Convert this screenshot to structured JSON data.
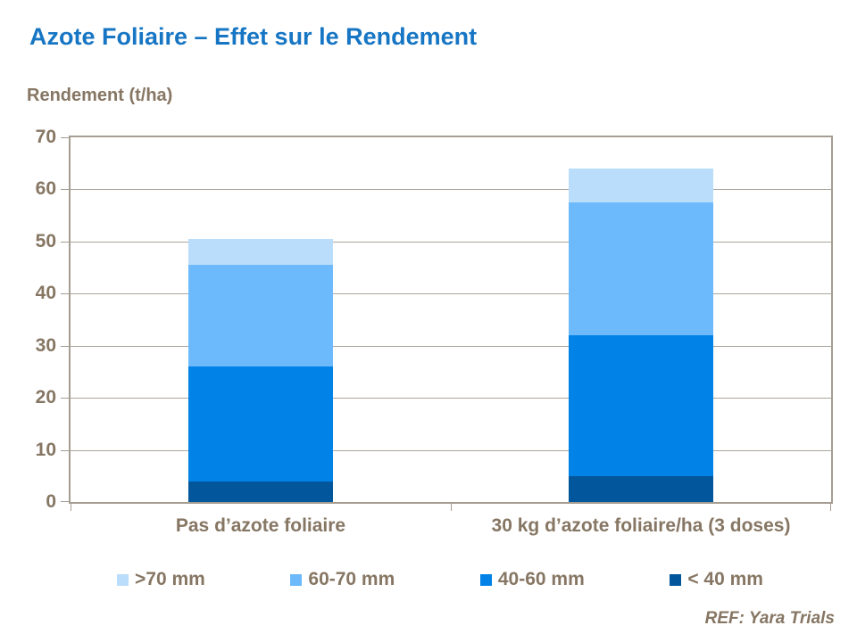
{
  "title": "Azote Foliaire – Effet sur le Rendement",
  "ref_note": "REF: Yara Trials",
  "colors": {
    "title_blue": "#1776C4",
    "text_brown": "#867663",
    "axis_line": "#A69D92",
    "gridline": "#ABA59D",
    "seg_gt70": "#B9DDFB",
    "seg_60_70": "#6CBAFB",
    "seg_40_60": "#0082E6",
    "seg_lt40": "#02569B"
  },
  "chart_data": {
    "type": "bar",
    "stacked": true,
    "title": "Azote Foliaire – Effet sur le Rendement",
    "ylabel": "Rendement (t/ha)",
    "xlabel": "",
    "ylim": [
      0,
      70
    ],
    "yticks": [
      0,
      10,
      20,
      30,
      40,
      50,
      60,
      70
    ],
    "grid": true,
    "legend_position": "bottom",
    "categories": [
      "Pas d’azote foliaire",
      "30 kg d’azote foliaire/ha (3 doses)"
    ],
    "series": [
      {
        "name": "< 40 mm",
        "color": "#02569B",
        "values": [
          4,
          5
        ]
      },
      {
        "name": "40-60 mm",
        "color": "#0082E6",
        "values": [
          22,
          27
        ]
      },
      {
        "name": "60-70 mm",
        "color": "#6CBAFB",
        "values": [
          19.5,
          25.5
        ]
      },
      {
        "name": ">70 mm",
        "color": "#B9DDFB",
        "values": [
          5,
          6.5
        ]
      }
    ],
    "totals": [
      50.5,
      64
    ]
  },
  "legend": {
    "items": [
      {
        "label": ">70 mm",
        "color": "#B9DDFB"
      },
      {
        "label": "60-70 mm",
        "color": "#6CBAFB"
      },
      {
        "label": "40-60 mm",
        "color": "#0082E6"
      },
      {
        "label": "< 40 mm",
        "color": "#02569B"
      }
    ]
  }
}
